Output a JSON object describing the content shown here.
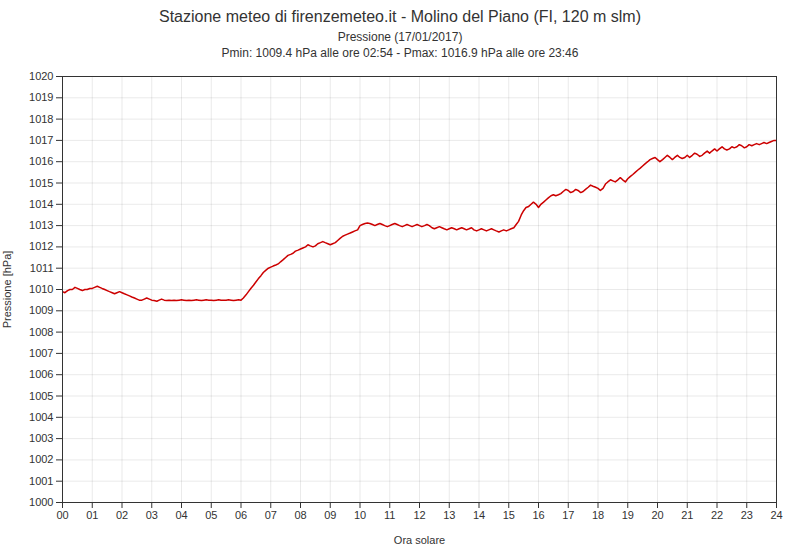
{
  "chart_data": {
    "type": "line",
    "title": "Stazione meteo di firenzemeteo.it - Molino del Piano (FI, 120 m slm)",
    "subtitle": [
      "Pressione (17/01/2017)",
      "Pmin: 1009.4 hPa alle ore 02:54 - Pmax: 1016.9 hPa alle ore 23:46"
    ],
    "x_label": "Ora solare",
    "y_label": "Pressione [hPa]",
    "color": "#cc0000",
    "grid": true,
    "xlim": [
      0,
      24
    ],
    "ylim": [
      1000,
      1020
    ],
    "xticks": [
      {
        "value": 0,
        "label": "00"
      },
      {
        "value": 1,
        "label": "01"
      },
      {
        "value": 2,
        "label": "02"
      },
      {
        "value": 3,
        "label": "03"
      },
      {
        "value": 4,
        "label": "04"
      },
      {
        "value": 5,
        "label": "05"
      },
      {
        "value": 6,
        "label": "06"
      },
      {
        "value": 7,
        "label": "07"
      },
      {
        "value": 8,
        "label": "08"
      },
      {
        "value": 9,
        "label": "09"
      },
      10,
      11,
      12,
      13,
      14,
      15,
      16,
      17,
      18,
      19,
      20,
      21,
      22,
      23,
      24
    ],
    "yticks": [
      1000,
      1001,
      1002,
      1003,
      1004,
      1005,
      1006,
      1007,
      1008,
      1009,
      1010,
      1011,
      1012,
      1013,
      1014,
      1015,
      1016,
      1017,
      1018,
      1019,
      1020
    ],
    "x": [
      0.0,
      0.08,
      0.17,
      0.25,
      0.33,
      0.42,
      0.5,
      0.58,
      0.67,
      0.75,
      0.83,
      0.92,
      1.0,
      1.08,
      1.17,
      1.25,
      1.33,
      1.42,
      1.5,
      1.58,
      1.67,
      1.75,
      1.83,
      1.92,
      2.0,
      2.08,
      2.17,
      2.25,
      2.33,
      2.42,
      2.5,
      2.58,
      2.67,
      2.75,
      2.83,
      2.92,
      3.0,
      3.08,
      3.17,
      3.25,
      3.33,
      3.42,
      3.5,
      3.58,
      3.67,
      3.75,
      3.83,
      3.92,
      4.0,
      4.08,
      4.17,
      4.25,
      4.33,
      4.42,
      4.5,
      4.58,
      4.67,
      4.75,
      4.83,
      4.92,
      5.0,
      5.08,
      5.17,
      5.25,
      5.33,
      5.42,
      5.5,
      5.58,
      5.67,
      5.75,
      5.83,
      5.92,
      6.0,
      6.08,
      6.17,
      6.25,
      6.33,
      6.42,
      6.5,
      6.58,
      6.67,
      6.75,
      6.83,
      6.92,
      7.0,
      7.08,
      7.17,
      7.25,
      7.33,
      7.42,
      7.5,
      7.58,
      7.67,
      7.75,
      7.83,
      7.92,
      8.0,
      8.08,
      8.17,
      8.25,
      8.33,
      8.42,
      8.5,
      8.58,
      8.67,
      8.75,
      8.83,
      8.92,
      9.0,
      9.08,
      9.17,
      9.25,
      9.33,
      9.42,
      9.5,
      9.58,
      9.67,
      9.75,
      9.83,
      9.92,
      10.0,
      10.08,
      10.17,
      10.25,
      10.33,
      10.42,
      10.5,
      10.58,
      10.67,
      10.75,
      10.83,
      10.92,
      11.0,
      11.08,
      11.17,
      11.25,
      11.33,
      11.42,
      11.5,
      11.58,
      11.67,
      11.75,
      11.83,
      11.92,
      12.0,
      12.08,
      12.17,
      12.25,
      12.33,
      12.42,
      12.5,
      12.58,
      12.67,
      12.75,
      12.83,
      12.92,
      13.0,
      13.08,
      13.17,
      13.25,
      13.33,
      13.42,
      13.5,
      13.58,
      13.67,
      13.75,
      13.83,
      13.92,
      14.0,
      14.08,
      14.17,
      14.25,
      14.33,
      14.42,
      14.5,
      14.58,
      14.67,
      14.75,
      14.83,
      14.92,
      15.0,
      15.08,
      15.17,
      15.25,
      15.33,
      15.42,
      15.5,
      15.58,
      15.67,
      15.75,
      15.83,
      15.92,
      16.0,
      16.08,
      16.17,
      16.25,
      16.33,
      16.42,
      16.5,
      16.58,
      16.67,
      16.75,
      16.83,
      16.92,
      17.0,
      17.08,
      17.17,
      17.25,
      17.33,
      17.42,
      17.5,
      17.58,
      17.67,
      17.75,
      17.83,
      17.92,
      18.0,
      18.08,
      18.17,
      18.25,
      18.33,
      18.42,
      18.5,
      18.58,
      18.67,
      18.75,
      18.83,
      18.92,
      19.0,
      19.08,
      19.17,
      19.25,
      19.33,
      19.42,
      19.5,
      19.58,
      19.67,
      19.75,
      19.83,
      19.92,
      20.0,
      20.08,
      20.17,
      20.25,
      20.33,
      20.42,
      20.5,
      20.58,
      20.67,
      20.75,
      20.83,
      20.92,
      21.0,
      21.08,
      21.17,
      21.25,
      21.33,
      21.42,
      21.5,
      21.58,
      21.67,
      21.75,
      21.83,
      21.92,
      22.0,
      22.08,
      22.17,
      22.25,
      22.33,
      22.42,
      22.5,
      22.58,
      22.67,
      22.75,
      22.83,
      22.92,
      23.0,
      23.08,
      23.17,
      23.25,
      23.33,
      23.42,
      23.5,
      23.58,
      23.67,
      23.75,
      23.83,
      23.92,
      24.0
    ],
    "values": [
      1009.9,
      1009.85,
      1009.95,
      1010.0,
      1010.0,
      1010.1,
      1010.05,
      1010.0,
      1009.95,
      1010.0,
      1010.0,
      1010.05,
      1010.05,
      1010.1,
      1010.15,
      1010.1,
      1010.05,
      1010.0,
      1009.95,
      1009.9,
      1009.85,
      1009.8,
      1009.85,
      1009.9,
      1009.85,
      1009.8,
      1009.75,
      1009.7,
      1009.65,
      1009.6,
      1009.55,
      1009.5,
      1009.5,
      1009.55,
      1009.6,
      1009.55,
      1009.5,
      1009.48,
      1009.45,
      1009.5,
      1009.55,
      1009.5,
      1009.48,
      1009.5,
      1009.48,
      1009.5,
      1009.48,
      1009.5,
      1009.52,
      1009.5,
      1009.48,
      1009.5,
      1009.48,
      1009.5,
      1009.52,
      1009.5,
      1009.48,
      1009.5,
      1009.52,
      1009.5,
      1009.5,
      1009.48,
      1009.5,
      1009.52,
      1009.5,
      1009.5,
      1009.5,
      1009.52,
      1009.5,
      1009.48,
      1009.5,
      1009.52,
      1009.5,
      1009.6,
      1009.75,
      1009.9,
      1010.05,
      1010.2,
      1010.35,
      1010.5,
      1010.65,
      1010.8,
      1010.9,
      1011.0,
      1011.05,
      1011.1,
      1011.15,
      1011.2,
      1011.3,
      1011.4,
      1011.5,
      1011.6,
      1011.65,
      1011.7,
      1011.8,
      1011.85,
      1011.9,
      1011.95,
      1012.0,
      1012.1,
      1012.05,
      1012.0,
      1012.05,
      1012.15,
      1012.2,
      1012.25,
      1012.2,
      1012.15,
      1012.1,
      1012.15,
      1012.2,
      1012.3,
      1012.4,
      1012.5,
      1012.55,
      1012.6,
      1012.65,
      1012.7,
      1012.75,
      1012.8,
      1013.0,
      1013.05,
      1013.1,
      1013.12,
      1013.1,
      1013.05,
      1013.0,
      1013.05,
      1013.1,
      1013.05,
      1013.0,
      1012.95,
      1013.0,
      1013.05,
      1013.1,
      1013.05,
      1013.0,
      1012.95,
      1013.0,
      1013.05,
      1013.0,
      1012.95,
      1013.0,
      1013.05,
      1013.0,
      1012.95,
      1013.0,
      1013.05,
      1013.0,
      1012.9,
      1012.85,
      1012.9,
      1012.95,
      1012.9,
      1012.85,
      1012.8,
      1012.85,
      1012.9,
      1012.85,
      1012.8,
      1012.85,
      1012.9,
      1012.85,
      1012.8,
      1012.85,
      1012.9,
      1012.8,
      1012.75,
      1012.8,
      1012.85,
      1012.8,
      1012.75,
      1012.8,
      1012.85,
      1012.8,
      1012.75,
      1012.7,
      1012.75,
      1012.8,
      1012.75,
      1012.8,
      1012.85,
      1012.9,
      1013.05,
      1013.2,
      1013.5,
      1013.7,
      1013.85,
      1013.9,
      1014.0,
      1014.1,
      1014.0,
      1013.85,
      1014.0,
      1014.1,
      1014.2,
      1014.3,
      1014.4,
      1014.45,
      1014.4,
      1014.45,
      1014.5,
      1014.6,
      1014.7,
      1014.65,
      1014.55,
      1014.6,
      1014.7,
      1014.65,
      1014.55,
      1014.6,
      1014.7,
      1014.8,
      1014.9,
      1014.85,
      1014.8,
      1014.75,
      1014.65,
      1014.75,
      1014.95,
      1015.05,
      1015.15,
      1015.1,
      1015.05,
      1015.15,
      1015.25,
      1015.15,
      1015.05,
      1015.2,
      1015.3,
      1015.4,
      1015.5,
      1015.6,
      1015.7,
      1015.8,
      1015.9,
      1016.0,
      1016.1,
      1016.15,
      1016.2,
      1016.1,
      1016.0,
      1016.1,
      1016.2,
      1016.3,
      1016.2,
      1016.1,
      1016.2,
      1016.3,
      1016.2,
      1016.15,
      1016.2,
      1016.3,
      1016.2,
      1016.3,
      1016.4,
      1016.35,
      1016.25,
      1016.3,
      1016.4,
      1016.5,
      1016.4,
      1016.5,
      1016.6,
      1016.5,
      1016.6,
      1016.7,
      1016.6,
      1016.55,
      1016.6,
      1016.7,
      1016.65,
      1016.7,
      1016.8,
      1016.75,
      1016.65,
      1016.7,
      1016.8,
      1016.75,
      1016.8,
      1016.85,
      1016.8,
      1016.85,
      1016.9,
      1016.85,
      1016.9,
      1016.95,
      1017.0,
      1017.0
    ]
  }
}
